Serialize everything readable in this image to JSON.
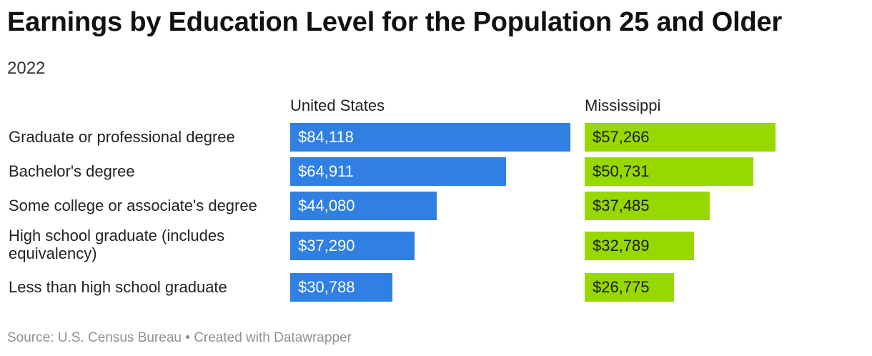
{
  "title": "Earnings by Education Level for the Population 25 and Older",
  "subtitle": "2022",
  "footer": {
    "source": "Source: U.S. Census Bureau",
    "separator": "•",
    "credit": "Created with Datawrapper"
  },
  "chart_data": {
    "type": "bar",
    "title": "Earnings by Education Level for the Population 25 and Older",
    "subtitle": "2022",
    "categories": [
      "Graduate or professional degree",
      "Bachelor's degree",
      "Some college or associate's degree",
      "High school graduate (includes equivalency)",
      "Less than high school graduate"
    ],
    "series": [
      {
        "name": "United States",
        "color": "#2f80e2",
        "values": [
          84118,
          64911,
          44080,
          37290,
          30788
        ],
        "value_labels": [
          "$84,118",
          "$64,911",
          "$44,080",
          "$37,290",
          "$30,788"
        ]
      },
      {
        "name": "Mississippi",
        "color": "#96d800",
        "values": [
          57266,
          50731,
          37485,
          32789,
          26775
        ],
        "value_labels": [
          "$57,266",
          "$50,731",
          "$37,485",
          "$32,789",
          "$26,775"
        ]
      }
    ],
    "xlim": [
      0,
      84118
    ],
    "grid": false,
    "legend": "none"
  }
}
